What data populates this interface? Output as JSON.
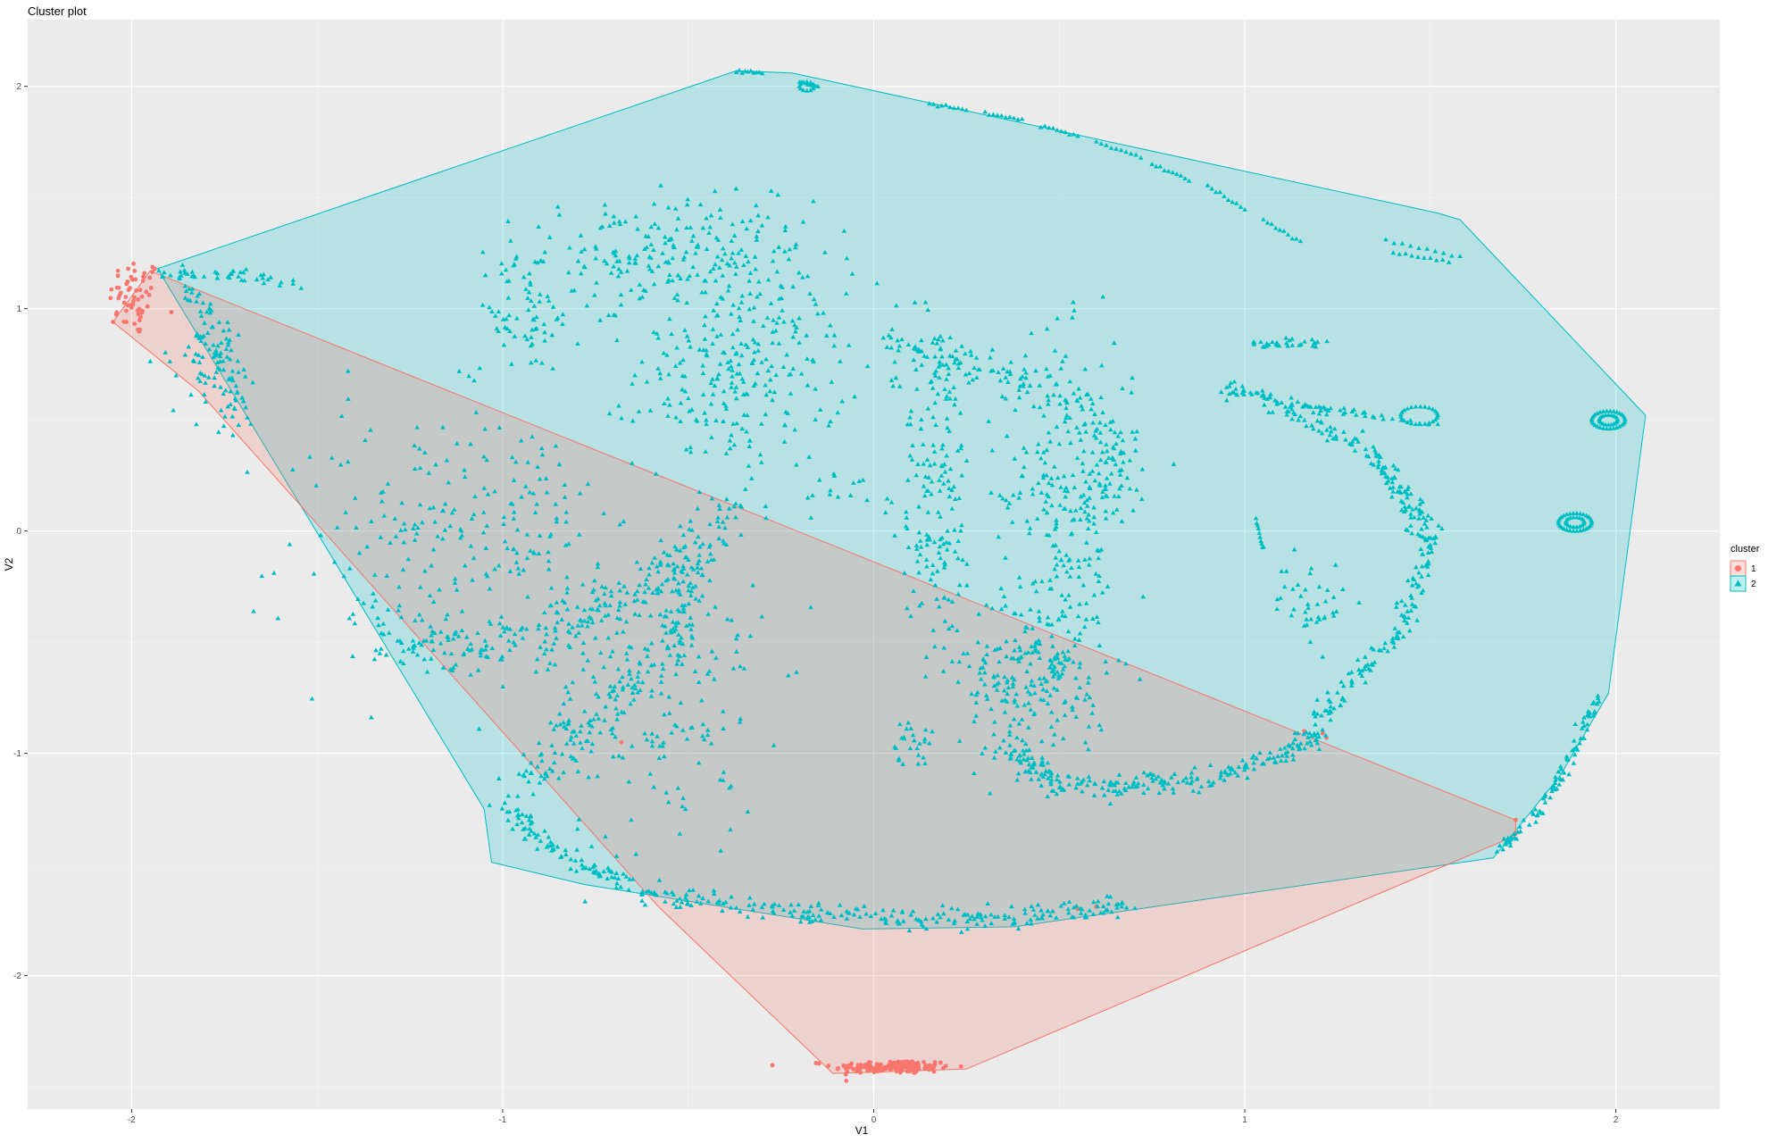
{
  "chart_data": {
    "type": "scatter",
    "title": "Cluster plot",
    "xlabel": "V1",
    "ylabel": "V2",
    "xlim": [
      -2.28,
      2.28
    ],
    "ylim": [
      -2.6,
      2.3
    ],
    "x_ticks": [
      -2,
      -1,
      0,
      1,
      2
    ],
    "y_ticks": [
      -2,
      -1,
      0,
      1,
      2
    ],
    "grid": true,
    "legend": {
      "title": "cluster",
      "position": "right",
      "entries": [
        {
          "label": "1",
          "color": "#F8766D",
          "shape": "circle"
        },
        {
          "label": "2",
          "color": "#00BFC4",
          "shape": "triangle"
        }
      ]
    },
    "background": "#EBEBEB",
    "series": [
      {
        "name": "1",
        "color": "#F8766D",
        "hull": [
          [
            -1.95,
            1.17
          ],
          [
            1.73,
            -1.3
          ],
          [
            1.73,
            -1.37
          ],
          [
            0.25,
            -2.42
          ],
          [
            -0.11,
            -2.44
          ],
          [
            -0.58,
            -1.69
          ],
          [
            -1.82,
            0.63
          ],
          [
            -2.05,
            0.94
          ]
        ],
        "clusters": [
          {
            "cx": -1.99,
            "cy": 1.05,
            "sx": 0.035,
            "sy": 0.09,
            "n": 60
          },
          {
            "cx": 0.05,
            "cy": -2.41,
            "sx": 0.08,
            "sy": 0.015,
            "n": 160
          }
        ],
        "points": [
          [
            -2.05,
            0.94
          ],
          [
            -0.68,
            -0.95
          ],
          [
            1.21,
            -0.91
          ],
          [
            1.22,
            -0.93
          ],
          [
            1.73,
            -1.3
          ],
          [
            1.73,
            -1.36
          ],
          [
            0.6,
            -1.69
          ],
          [
            0.55,
            -1.7
          ],
          [
            1.16,
            -0.9
          ]
        ]
      },
      {
        "name": "2",
        "color": "#00BFC4",
        "hull": [
          [
            -1.93,
            1.18
          ],
          [
            -0.37,
            2.07
          ],
          [
            -0.22,
            2.06
          ],
          [
            1.52,
            1.43
          ],
          [
            1.58,
            1.4
          ],
          [
            2.08,
            0.52
          ],
          [
            1.98,
            -0.73
          ],
          [
            1.85,
            -1.1
          ],
          [
            1.67,
            -1.47
          ],
          [
            0.38,
            -1.78
          ],
          [
            -0.03,
            -1.79
          ],
          [
            -0.78,
            -1.59
          ],
          [
            -1.03,
            -1.49
          ],
          [
            -1.05,
            -1.25
          ]
        ],
        "clusters": [
          {
            "cx": -0.55,
            "cy": 1.25,
            "sx": 0.2,
            "sy": 0.12,
            "n": 220
          },
          {
            "cx": -0.36,
            "cy": 0.72,
            "sx": 0.14,
            "sy": 0.22,
            "n": 260
          },
          {
            "cx": -0.95,
            "cy": 0.95,
            "sx": 0.08,
            "sy": 0.12,
            "n": 60
          },
          {
            "cx": -1.23,
            "cy": -0.05,
            "sx": 0.18,
            "sy": 0.32,
            "n": 140
          },
          {
            "cx": -0.95,
            "cy": 0.08,
            "sx": 0.12,
            "sy": 0.22,
            "n": 80
          },
          {
            "cx": 0.17,
            "cy": 0.2,
            "sx": 0.05,
            "sy": 0.4,
            "n": 180
          },
          {
            "cx": 0.52,
            "cy": 0.15,
            "sx": 0.09,
            "sy": 0.35,
            "n": 240
          },
          {
            "cx": 0.43,
            "cy": -0.65,
            "sx": 0.1,
            "sy": 0.2,
            "n": 220
          },
          {
            "cx": 1.18,
            "cy": -0.32,
            "sx": 0.05,
            "sy": 0.1,
            "n": 40
          },
          {
            "cx": 0.1,
            "cy": -0.95,
            "sx": 0.03,
            "sy": 0.05,
            "n": 25
          },
          {
            "cx": -1.8,
            "cy": 0.8,
            "sx": 0.05,
            "sy": 0.15,
            "n": 60
          },
          {
            "cx": -0.6,
            "cy": -0.75,
            "sx": 0.15,
            "sy": 0.35,
            "n": 200
          },
          {
            "cx": -0.1,
            "cy": 0.2,
            "sx": 0.05,
            "sy": 0.05,
            "n": 12
          }
        ],
        "curves": [
          {
            "points": [
              [
                -1.35,
                -0.48
              ],
              [
                -1.1,
                -0.55
              ],
              [
                -0.85,
                -0.45
              ],
              [
                -0.6,
                -0.25
              ],
              [
                -0.45,
                -0.05
              ],
              [
                -0.4,
                0.1
              ]
            ],
            "spread": 0.06,
            "n": 260
          },
          {
            "points": [
              [
                -0.95,
                -1.15
              ],
              [
                -0.8,
                -0.88
              ],
              [
                -0.6,
                -0.65
              ],
              [
                -0.5,
                -0.35
              ],
              [
                -0.5,
                -0.1
              ]
            ],
            "spread": 0.05,
            "n": 150
          },
          {
            "points": [
              [
                -1.0,
                -1.23
              ],
              [
                -0.8,
                -1.5
              ],
              [
                -0.55,
                -1.65
              ],
              [
                -0.2,
                -1.72
              ],
              [
                0.1,
                -1.74
              ],
              [
                0.35,
                -1.74
              ],
              [
                0.7,
                -1.68
              ]
            ],
            "spread": 0.025,
            "n": 320
          },
          {
            "points": [
              [
                0.35,
                -0.95
              ],
              [
                0.5,
                -1.15
              ],
              [
                0.7,
                -1.15
              ],
              [
                0.9,
                -1.12
              ],
              [
                1.1,
                -1.0
              ],
              [
                1.2,
                -0.92
              ]
            ],
            "spread": 0.025,
            "n": 240
          },
          {
            "points": [
              [
                1.2,
                -0.85
              ],
              [
                1.3,
                -0.65
              ],
              [
                1.42,
                -0.45
              ],
              [
                1.48,
                -0.2
              ],
              [
                1.5,
                0.0
              ]
            ],
            "spread": 0.02,
            "n": 120
          },
          {
            "points": [
              [
                0.95,
                0.65
              ],
              [
                1.15,
                0.52
              ],
              [
                1.35,
                0.35
              ],
              [
                1.45,
                0.1
              ],
              [
                1.5,
                -0.05
              ]
            ],
            "spread": 0.025,
            "n": 160
          },
          {
            "points": [
              [
                0.05,
                0.85
              ],
              [
                0.35,
                0.7
              ],
              [
                0.55,
                0.6
              ],
              [
                0.65,
                0.4
              ],
              [
                0.65,
                0.15
              ]
            ],
            "spread": 0.04,
            "n": 150
          },
          {
            "points": [
              [
                -1.93,
                1.15
              ],
              [
                -1.7,
                1.15
              ],
              [
                -1.55,
                1.1
              ]
            ],
            "spread": 0.015,
            "n": 40
          },
          {
            "points": [
              [
                1.02,
                0.85
              ],
              [
                1.25,
                0.84
              ]
            ],
            "spread": 0.01,
            "n": 30
          },
          {
            "points": [
              [
                1.0,
                0.62
              ],
              [
                1.2,
                0.55
              ],
              [
                1.35,
                0.52
              ]
            ],
            "spread": 0.012,
            "n": 40
          },
          {
            "points": [
              [
                1.67,
                -1.46
              ],
              [
                1.8,
                -1.25
              ],
              [
                1.9,
                -0.95
              ],
              [
                1.95,
                -0.75
              ]
            ],
            "spread": 0.012,
            "n": 90
          },
          {
            "points": [
              [
                -1.85,
                1.15
              ],
              [
                -1.75,
                0.8
              ],
              [
                -1.72,
                0.5
              ]
            ],
            "spread": 0.03,
            "n": 70
          }
        ],
        "segments": [
          [
            [
              -0.37,
              2.07
            ],
            [
              -0.3,
              2.06
            ]
          ],
          [
            [
              -0.2,
              2.02
            ],
            [
              -0.15,
              2.0
            ]
          ],
          [
            [
              0.15,
              1.92
            ],
            [
              0.25,
              1.9
            ]
          ],
          [
            [
              0.3,
              1.88
            ],
            [
              0.4,
              1.85
            ]
          ],
          [
            [
              0.45,
              1.82
            ],
            [
              0.55,
              1.78
            ]
          ],
          [
            [
              0.6,
              1.75
            ],
            [
              0.72,
              1.68
            ]
          ],
          [
            [
              0.75,
              1.65
            ],
            [
              0.85,
              1.58
            ]
          ],
          [
            [
              0.9,
              1.55
            ],
            [
              1.0,
              1.45
            ]
          ],
          [
            [
              1.05,
              1.4
            ],
            [
              1.15,
              1.3
            ]
          ],
          [
            [
              1.38,
              1.31
            ],
            [
              1.58,
              1.23
            ]
          ],
          [
            [
              1.4,
              1.25
            ],
            [
              1.55,
              1.21
            ]
          ],
          [
            [
              1.03,
              0.05
            ],
            [
              1.05,
              -0.08
            ]
          ],
          [
            [
              1.3,
              0.52
            ],
            [
              1.52,
              0.48
            ]
          ]
        ],
        "rings": [
          {
            "cx": 1.98,
            "cy": 0.5,
            "rx": 0.045,
            "ry": 0.04,
            "n": 30
          },
          {
            "cx": 1.98,
            "cy": 0.5,
            "rx": 0.025,
            "ry": 0.022,
            "n": 20
          },
          {
            "cx": 1.89,
            "cy": 0.04,
            "rx": 0.045,
            "ry": 0.04,
            "n": 30
          },
          {
            "cx": 1.89,
            "cy": 0.04,
            "rx": 0.025,
            "ry": 0.022,
            "n": 18
          },
          {
            "cx": 1.47,
            "cy": 0.52,
            "rx": 0.05,
            "ry": 0.04,
            "n": 25
          },
          {
            "cx": -0.18,
            "cy": 2.0,
            "rx": 0.02,
            "ry": 0.02,
            "n": 12
          }
        ]
      }
    ]
  }
}
